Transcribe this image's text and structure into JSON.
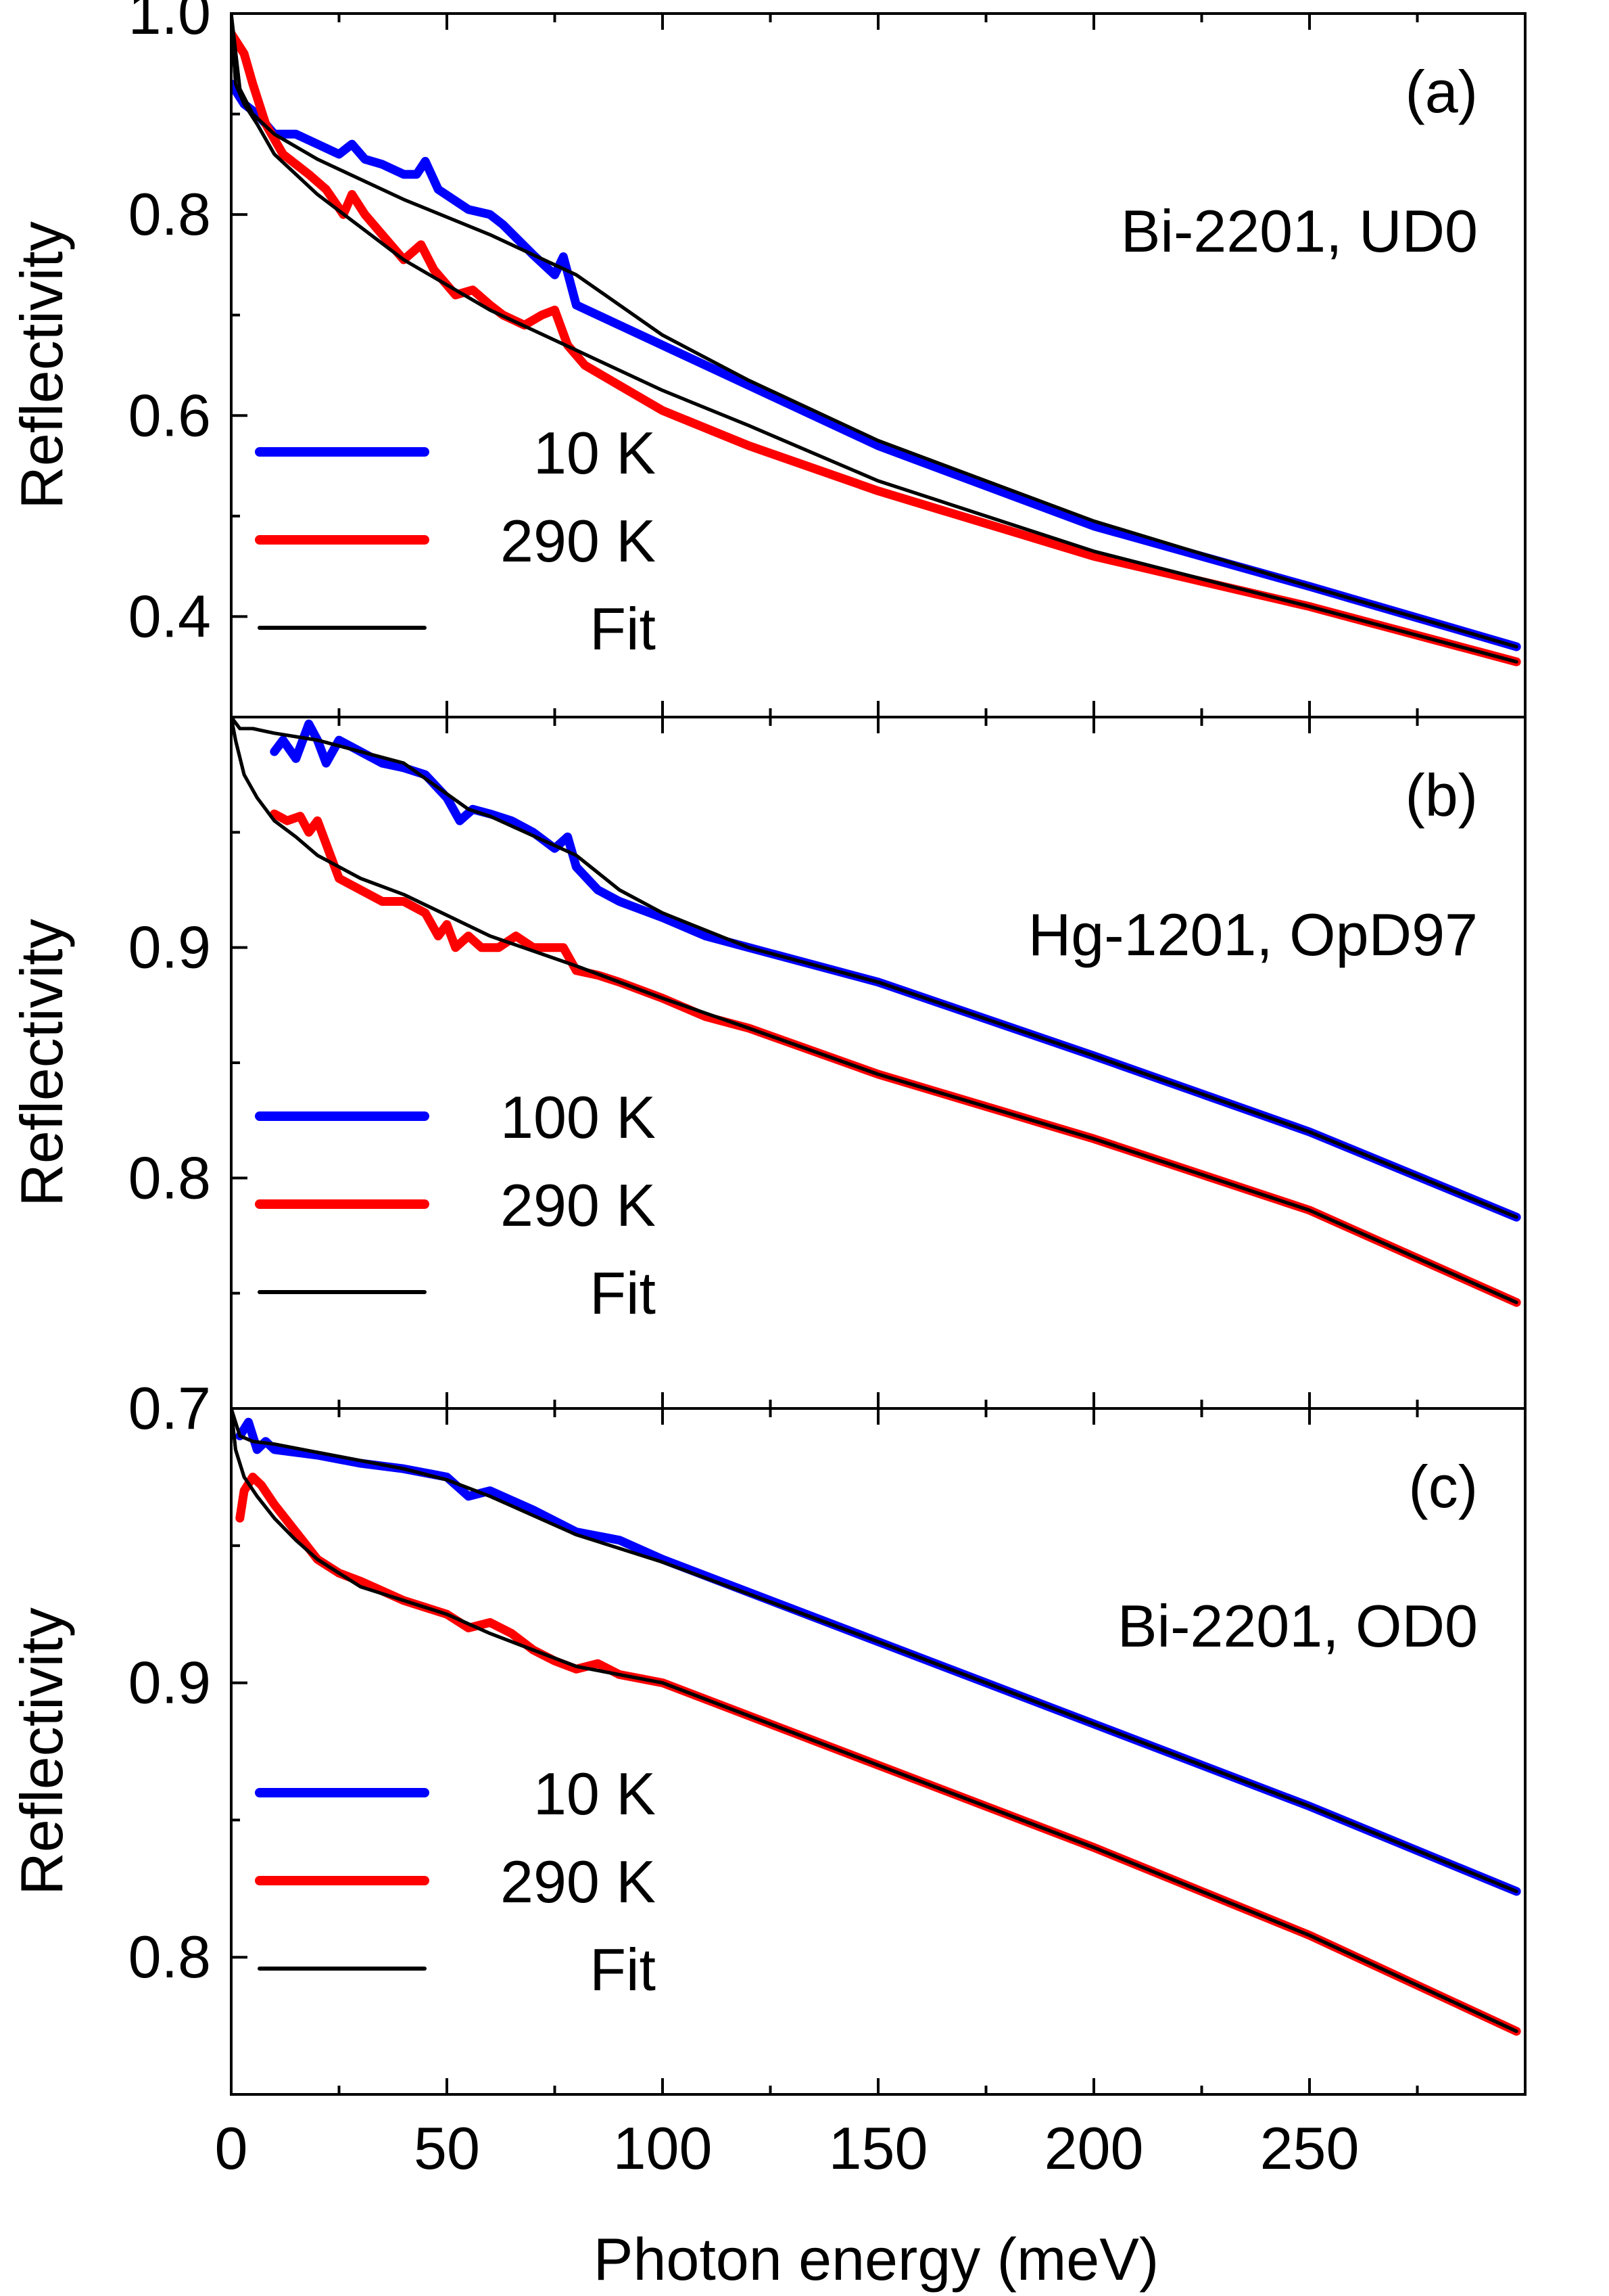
{
  "figure": {
    "xlabel": "Photon energy (meV)",
    "colors": {
      "blue": "#0000ff",
      "red": "#ff0000",
      "fit": "#000000",
      "axis": "#000000"
    }
  },
  "chart_data": [
    {
      "type": "line",
      "panel_label": "(a)",
      "sample": "Bi-2201, UD0",
      "ylabel": "Reflectivity",
      "xlim": [
        0,
        300
      ],
      "ylim": [
        0.3,
        1.0
      ],
      "xticks": [
        0,
        50,
        100,
        150,
        200,
        250
      ],
      "yticks": [
        0.4,
        0.6,
        0.8,
        1.0
      ],
      "ytick_labels": [
        "0.4",
        "0.6",
        "0.8",
        "1.0"
      ],
      "legend": [
        "10 K",
        "290 K",
        "Fit"
      ],
      "legend_position": "bottom-left",
      "series": [
        {
          "name": "10 K",
          "color": "blue",
          "x": [
            0,
            3,
            6,
            10,
            15,
            20,
            25,
            28,
            31,
            35,
            40,
            43,
            45,
            48,
            55,
            60,
            63,
            70,
            75,
            77,
            80,
            90,
            100,
            120,
            150,
            200,
            250,
            298
          ],
          "y": [
            0.93,
            0.91,
            0.9,
            0.88,
            0.88,
            0.87,
            0.86,
            0.87,
            0.855,
            0.85,
            0.84,
            0.84,
            0.853,
            0.825,
            0.805,
            0.8,
            0.79,
            0.76,
            0.74,
            0.758,
            0.71,
            0.69,
            0.67,
            0.63,
            0.57,
            0.49,
            0.43,
            0.37
          ]
        },
        {
          "name": "290 K",
          "color": "red",
          "x": [
            0,
            3,
            5,
            8,
            12,
            18,
            22,
            26,
            28,
            31,
            35,
            40,
            44,
            47,
            52,
            56,
            60,
            63,
            68,
            72,
            75,
            78,
            82,
            90,
            100,
            120,
            150,
            200,
            250,
            298
          ],
          "y": [
            0.98,
            0.96,
            0.93,
            0.89,
            0.86,
            0.84,
            0.825,
            0.8,
            0.82,
            0.8,
            0.78,
            0.755,
            0.77,
            0.745,
            0.72,
            0.725,
            0.71,
            0.7,
            0.69,
            0.7,
            0.705,
            0.67,
            0.65,
            0.63,
            0.605,
            0.57,
            0.525,
            0.46,
            0.41,
            0.355
          ]
        },
        {
          "name": "Fit 10 K",
          "color": "fit",
          "x": [
            0,
            2,
            5,
            10,
            20,
            40,
            60,
            80,
            100,
            120,
            150,
            200,
            250,
            298
          ],
          "y": [
            1.0,
            0.925,
            0.9,
            0.88,
            0.855,
            0.815,
            0.78,
            0.74,
            0.68,
            0.635,
            0.575,
            0.495,
            0.43,
            0.37
          ]
        },
        {
          "name": "Fit 290 K",
          "color": "fit",
          "x": [
            0,
            1,
            3,
            6,
            10,
            20,
            40,
            60,
            80,
            100,
            120,
            150,
            200,
            250,
            298
          ],
          "y": [
            1.0,
            0.93,
            0.91,
            0.89,
            0.86,
            0.82,
            0.755,
            0.705,
            0.665,
            0.625,
            0.59,
            0.535,
            0.465,
            0.41,
            0.355
          ]
        }
      ]
    },
    {
      "type": "line",
      "panel_label": "(b)",
      "sample": "Hg-1201, OpD97",
      "ylabel": "Reflectivity",
      "xlim": [
        0,
        300
      ],
      "ylim": [
        0.7,
        1.0
      ],
      "xticks": [
        0,
        50,
        100,
        150,
        200,
        250
      ],
      "yticks": [
        0.7,
        0.8,
        0.9
      ],
      "ytick_labels": [
        "0.7",
        "0.8",
        "0.9"
      ],
      "legend": [
        "100 K",
        "290 K",
        "Fit"
      ],
      "legend_position": "bottom-left",
      "series": [
        {
          "name": "100 K",
          "color": "blue",
          "x": [
            10,
            12,
            15,
            18,
            20,
            22,
            25,
            30,
            35,
            40,
            45,
            50,
            53,
            56,
            60,
            65,
            70,
            75,
            78,
            80,
            85,
            90,
            100,
            110,
            120,
            150,
            200,
            250,
            298
          ],
          "y": [
            0.985,
            0.99,
            0.982,
            0.997,
            0.99,
            0.98,
            0.99,
            0.985,
            0.98,
            0.978,
            0.975,
            0.965,
            0.955,
            0.96,
            0.958,
            0.955,
            0.95,
            0.943,
            0.948,
            0.935,
            0.925,
            0.92,
            0.913,
            0.905,
            0.9,
            0.885,
            0.853,
            0.82,
            0.783
          ]
        },
        {
          "name": "290 K",
          "color": "red",
          "x": [
            10,
            13,
            16,
            18,
            20,
            25,
            30,
            35,
            40,
            45,
            48,
            50,
            52,
            55,
            58,
            62,
            66,
            70,
            74,
            77,
            80,
            85,
            90,
            100,
            110,
            120,
            150,
            200,
            250,
            298
          ],
          "y": [
            0.958,
            0.955,
            0.957,
            0.95,
            0.955,
            0.93,
            0.925,
            0.92,
            0.92,
            0.915,
            0.905,
            0.91,
            0.9,
            0.905,
            0.9,
            0.9,
            0.905,
            0.9,
            0.9,
            0.9,
            0.89,
            0.888,
            0.885,
            0.878,
            0.87,
            0.865,
            0.845,
            0.817,
            0.786,
            0.746
          ]
        },
        {
          "name": "Fit 100 K",
          "color": "fit",
          "x": [
            0,
            2,
            5,
            10,
            20,
            40,
            55,
            60,
            80,
            90,
            100,
            120,
            150,
            200,
            250,
            298
          ],
          "y": [
            1.0,
            0.995,
            0.995,
            0.993,
            0.99,
            0.98,
            0.96,
            0.957,
            0.94,
            0.925,
            0.915,
            0.9,
            0.885,
            0.853,
            0.82,
            0.783
          ]
        },
        {
          "name": "Fit 290 K",
          "color": "fit",
          "x": [
            0,
            1,
            3,
            6,
            10,
            15,
            20,
            30,
            40,
            60,
            80,
            100,
            120,
            150,
            200,
            250,
            298
          ],
          "y": [
            1.0,
            0.99,
            0.975,
            0.965,
            0.955,
            0.948,
            0.94,
            0.93,
            0.923,
            0.905,
            0.892,
            0.878,
            0.865,
            0.845,
            0.817,
            0.786,
            0.746
          ]
        }
      ]
    },
    {
      "type": "line",
      "panel_label": "(c)",
      "sample": "Bi-2201, OD0",
      "ylabel": "Reflectivity",
      "xlim": [
        0,
        300
      ],
      "ylim": [
        0.75,
        1.0
      ],
      "xticks": [
        0,
        50,
        100,
        150,
        200,
        250
      ],
      "yticks": [
        0.8,
        0.9
      ],
      "ytick_labels": [
        "0.8",
        "0.9"
      ],
      "legend": [
        "10 K",
        "290 K",
        "Fit"
      ],
      "legend_position": "bottom-left",
      "series": [
        {
          "name": "10 K",
          "color": "blue",
          "x": [
            2,
            4,
            6,
            8,
            10,
            20,
            30,
            40,
            50,
            55,
            60,
            70,
            80,
            90,
            100,
            150,
            200,
            250,
            298
          ],
          "y": [
            0.99,
            0.995,
            0.985,
            0.988,
            0.985,
            0.983,
            0.98,
            0.978,
            0.975,
            0.968,
            0.97,
            0.963,
            0.955,
            0.952,
            0.945,
            0.915,
            0.885,
            0.855,
            0.824
          ]
        },
        {
          "name": "290 K",
          "color": "red",
          "x": [
            2,
            3,
            5,
            7,
            10,
            15,
            20,
            25,
            30,
            40,
            50,
            55,
            60,
            65,
            70,
            75,
            80,
            85,
            90,
            100,
            150,
            200,
            250,
            298
          ],
          "y": [
            0.96,
            0.97,
            0.975,
            0.972,
            0.965,
            0.955,
            0.945,
            0.94,
            0.937,
            0.93,
            0.925,
            0.92,
            0.922,
            0.918,
            0.912,
            0.908,
            0.905,
            0.907,
            0.903,
            0.9,
            0.87,
            0.84,
            0.808,
            0.773
          ]
        },
        {
          "name": "Fit 10 K",
          "color": "fit",
          "x": [
            0,
            2,
            5,
            10,
            20,
            30,
            40,
            50,
            60,
            80,
            100,
            150,
            200,
            250,
            298
          ],
          "y": [
            1.0,
            0.99,
            0.988,
            0.987,
            0.984,
            0.981,
            0.978,
            0.974,
            0.968,
            0.954,
            0.944,
            0.915,
            0.885,
            0.855,
            0.824
          ]
        },
        {
          "name": "Fit 290 K",
          "color": "fit",
          "x": [
            0,
            1,
            3,
            6,
            10,
            15,
            20,
            25,
            30,
            40,
            50,
            60,
            80,
            100,
            150,
            200,
            250,
            298
          ],
          "y": [
            1.0,
            0.985,
            0.975,
            0.968,
            0.96,
            0.952,
            0.945,
            0.94,
            0.935,
            0.93,
            0.925,
            0.918,
            0.906,
            0.9,
            0.87,
            0.84,
            0.808,
            0.773
          ]
        }
      ]
    }
  ]
}
